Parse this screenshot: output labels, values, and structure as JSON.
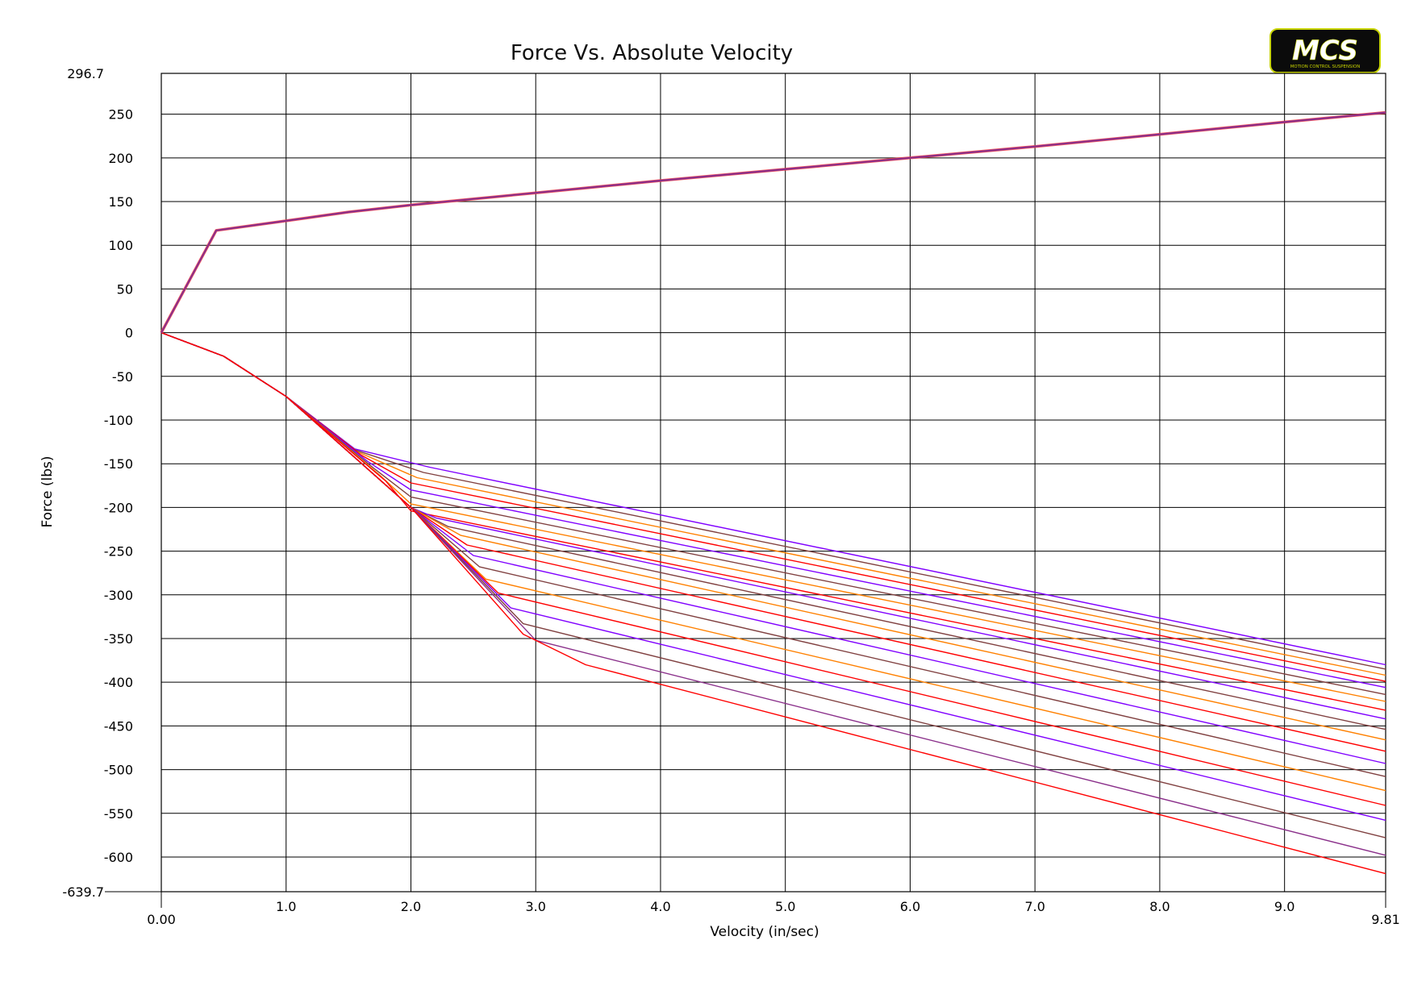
{
  "chart_data": {
    "type": "line",
    "title": "Force Vs. Absolute Velocity",
    "xlabel": "Velocity (in/sec)",
    "ylabel": "Force (lbs)",
    "xlim": [
      0,
      9.81
    ],
    "ylim": [
      -639.7,
      296.7
    ],
    "x_ticks": [
      "0.00",
      "1.0",
      "2.0",
      "3.0",
      "4.0",
      "5.0",
      "6.0",
      "7.0",
      "8.0",
      "9.0",
      "9.81"
    ],
    "y_ticks": [
      "296.7",
      "250",
      "200",
      "150",
      "100",
      "50",
      "0",
      "-50",
      "-100",
      "-150",
      "-200",
      "-250",
      "-300",
      "-350",
      "-400",
      "-450",
      "-500",
      "-550",
      "-600",
      "-639.7"
    ],
    "grid": true,
    "rebound_curve": {
      "x": [
        0,
        0.44,
        1.0,
        1.5,
        2.0,
        3.0,
        4.0,
        5.0,
        6.0,
        7.0,
        8.0,
        9.0,
        9.81
      ],
      "y": [
        0,
        117,
        128,
        138,
        146,
        160,
        174,
        187,
        200,
        213,
        227,
        241,
        252
      ]
    },
    "compression_series": [
      {
        "color": "#8000ff",
        "x": [
          0,
          0.5,
          1.0,
          1.55,
          2.15,
          9.81
        ],
        "y": [
          0,
          -27,
          -73,
          -133,
          -154,
          -380
        ]
      },
      {
        "color": "#804040",
        "x": [
          0,
          0.5,
          1.0,
          1.55,
          2.1,
          9.81
        ],
        "y": [
          0,
          -27,
          -73,
          -134,
          -160,
          -385
        ]
      },
      {
        "color": "#ff8000",
        "x": [
          0,
          0.5,
          1.0,
          1.55,
          2.05,
          9.81
        ],
        "y": [
          0,
          -27,
          -73,
          -135,
          -166,
          -392
        ]
      },
      {
        "color": "#ff0000",
        "x": [
          0,
          0.5,
          1.0,
          1.6,
          2.0,
          9.81
        ],
        "y": [
          0,
          -27,
          -73,
          -140,
          -172,
          -399
        ]
      },
      {
        "color": "#8000ff",
        "x": [
          0,
          0.5,
          1.0,
          1.65,
          2.0,
          9.81
        ],
        "y": [
          0,
          -27,
          -73,
          -147,
          -180,
          -406
        ]
      },
      {
        "color": "#804040",
        "x": [
          0,
          0.5,
          1.0,
          1.7,
          2.0,
          9.81
        ],
        "y": [
          0,
          -27,
          -73,
          -155,
          -188,
          -414
        ]
      },
      {
        "color": "#ff8000",
        "x": [
          0,
          0.5,
          1.0,
          1.75,
          2.0,
          9.81
        ],
        "y": [
          0,
          -27,
          -73,
          -163,
          -196,
          -422
        ]
      },
      {
        "color": "#ff0000",
        "x": [
          0,
          0.5,
          1.0,
          1.8,
          2.0,
          9.81
        ],
        "y": [
          0,
          -27,
          -73,
          -170,
          -204,
          -432
        ]
      },
      {
        "color": "#8000ff",
        "x": [
          0,
          0.5,
          1.0,
          2.0,
          2.2,
          9.81
        ],
        "y": [
          0,
          -27,
          -73,
          -200,
          -212,
          -442
        ]
      },
      {
        "color": "#804040",
        "x": [
          0,
          0.5,
          1.0,
          2.0,
          2.3,
          9.81
        ],
        "y": [
          0,
          -27,
          -73,
          -200,
          -222,
          -454
        ]
      },
      {
        "color": "#ff8000",
        "x": [
          0,
          0.5,
          1.0,
          2.0,
          2.4,
          9.81
        ],
        "y": [
          0,
          -27,
          -73,
          -200,
          -232,
          -466
        ]
      },
      {
        "color": "#ff0000",
        "x": [
          0,
          0.5,
          1.0,
          2.0,
          2.45,
          9.81
        ],
        "y": [
          0,
          -27,
          -73,
          -200,
          -243,
          -479
        ]
      },
      {
        "color": "#8000ff",
        "x": [
          0,
          0.5,
          1.0,
          2.0,
          2.5,
          9.81
        ],
        "y": [
          0,
          -27,
          -73,
          -200,
          -255,
          -493
        ]
      },
      {
        "color": "#804040",
        "x": [
          0,
          0.5,
          1.0,
          2.0,
          2.55,
          9.81
        ],
        "y": [
          0,
          -27,
          -73,
          -200,
          -268,
          -508
        ]
      },
      {
        "color": "#ff8000",
        "x": [
          0,
          0.5,
          1.0,
          2.0,
          2.6,
          9.81
        ],
        "y": [
          0,
          -27,
          -73,
          -200,
          -282,
          -524
        ]
      },
      {
        "color": "#ff0000",
        "x": [
          0,
          0.5,
          1.0,
          2.0,
          2.7,
          9.81
        ],
        "y": [
          0,
          -27,
          -73,
          -200,
          -298,
          -541
        ]
      },
      {
        "color": "#8000ff",
        "x": [
          0,
          0.5,
          1.0,
          2.0,
          2.8,
          9.81
        ],
        "y": [
          0,
          -27,
          -73,
          -200,
          -315,
          -558
        ]
      },
      {
        "color": "#804040",
        "x": [
          0,
          0.5,
          1.0,
          2.0,
          2.9,
          9.81
        ],
        "y": [
          0,
          -27,
          -73,
          -200,
          -333,
          -578
        ]
      },
      {
        "color": "#8a2f8a",
        "x": [
          0,
          0.5,
          1.0,
          2.0,
          3.0,
          9.81
        ],
        "y": [
          0,
          -27,
          -73,
          -200,
          -352,
          -598
        ]
      },
      {
        "color": "#ff0000",
        "x": [
          0,
          0.5,
          1.0,
          2.0,
          2.9,
          3.4,
          9.81
        ],
        "y": [
          0,
          -27,
          -73,
          -200,
          -345,
          -380,
          -619
        ]
      }
    ]
  },
  "logo": {
    "text": "MCS",
    "tagline": "MOTION CONTROL SUSPENSION",
    "accent": "#c8d400"
  }
}
